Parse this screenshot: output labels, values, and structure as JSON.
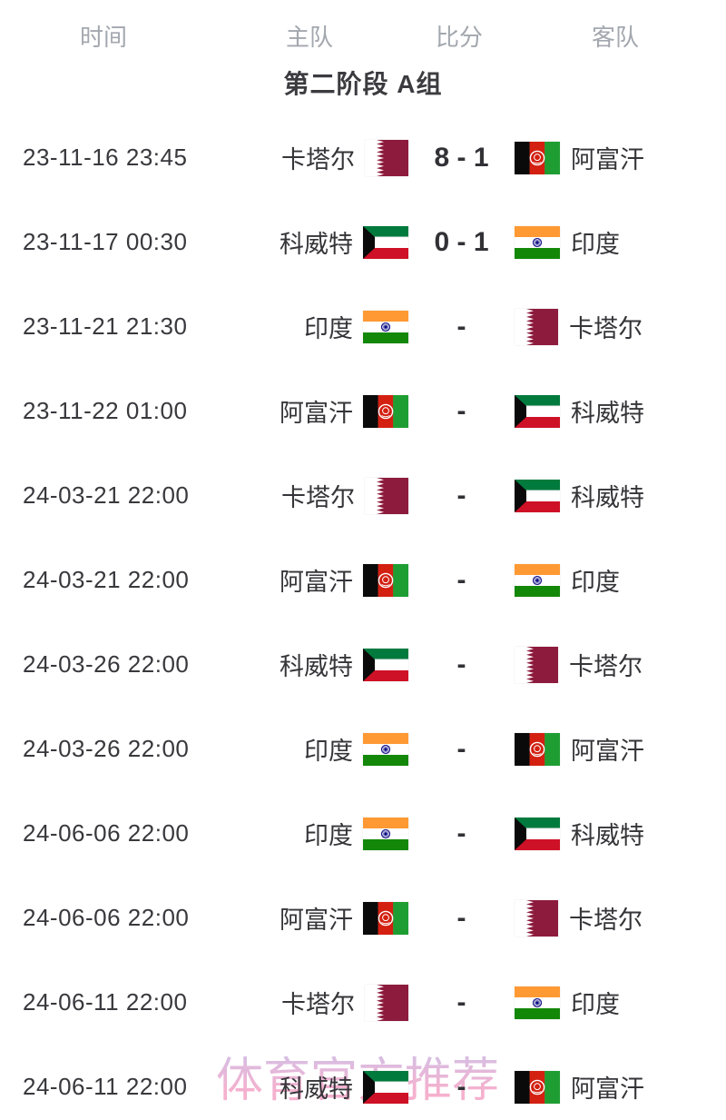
{
  "header": {
    "columns": [
      "时间",
      "主队",
      "比分",
      "客队"
    ]
  },
  "section_title": "第二阶段 A组",
  "watermark": "体育官方推荐",
  "matches": [
    {
      "time": "23-11-16 23:45",
      "home": "卡塔尔",
      "home_flag": "qatar",
      "score": "8 - 1",
      "away": "阿富汗",
      "away_flag": "afghanistan"
    },
    {
      "time": "23-11-17 00:30",
      "home": "科威特",
      "home_flag": "kuwait",
      "score": "0 - 1",
      "away": "印度",
      "away_flag": "india"
    },
    {
      "time": "23-11-21 21:30",
      "home": "印度",
      "home_flag": "india",
      "score": "-",
      "away": "卡塔尔",
      "away_flag": "qatar"
    },
    {
      "time": "23-11-22 01:00",
      "home": "阿富汗",
      "home_flag": "afghanistan",
      "score": "-",
      "away": "科威特",
      "away_flag": "kuwait"
    },
    {
      "time": "24-03-21 22:00",
      "home": "卡塔尔",
      "home_flag": "qatar",
      "score": "-",
      "away": "科威特",
      "away_flag": "kuwait"
    },
    {
      "time": "24-03-21 22:00",
      "home": "阿富汗",
      "home_flag": "afghanistan",
      "score": "-",
      "away": "印度",
      "away_flag": "india"
    },
    {
      "time": "24-03-26 22:00",
      "home": "科威特",
      "home_flag": "kuwait",
      "score": "-",
      "away": "卡塔尔",
      "away_flag": "qatar"
    },
    {
      "time": "24-03-26 22:00",
      "home": "印度",
      "home_flag": "india",
      "score": "-",
      "away": "阿富汗",
      "away_flag": "afghanistan"
    },
    {
      "time": "24-06-06 22:00",
      "home": "印度",
      "home_flag": "india",
      "score": "-",
      "away": "科威特",
      "away_flag": "kuwait"
    },
    {
      "time": "24-06-06 22:00",
      "home": "阿富汗",
      "home_flag": "afghanistan",
      "score": "-",
      "away": "卡塔尔",
      "away_flag": "qatar"
    },
    {
      "time": "24-06-11 22:00",
      "home": "卡塔尔",
      "home_flag": "qatar",
      "score": "-",
      "away": "印度",
      "away_flag": "india"
    },
    {
      "time": "24-06-11 22:00",
      "home": "科威特",
      "home_flag": "kuwait",
      "score": "-",
      "away": "阿富汗",
      "away_flag": "afghanistan"
    }
  ],
  "colors": {
    "header_text": "#a3a7ae",
    "body_text": "#38383d",
    "title_text": "#3b3b40",
    "watermark_top": "#c9bce8",
    "watermark_bottom": "#f6a9c8"
  },
  "flag_colors": {
    "qatar_maroon": "#8d1b3d",
    "afghan_black": "#0a0a0a",
    "afghan_red": "#d32011",
    "afghan_green": "#1e9e32",
    "kuwait_green": "#007a3d",
    "kuwait_white": "#ffffff",
    "kuwait_red": "#ce1126",
    "kuwait_black": "#0a0a0a",
    "india_saffron": "#ff9933",
    "india_white": "#ffffff",
    "india_green": "#138808",
    "india_navy": "#000080"
  }
}
